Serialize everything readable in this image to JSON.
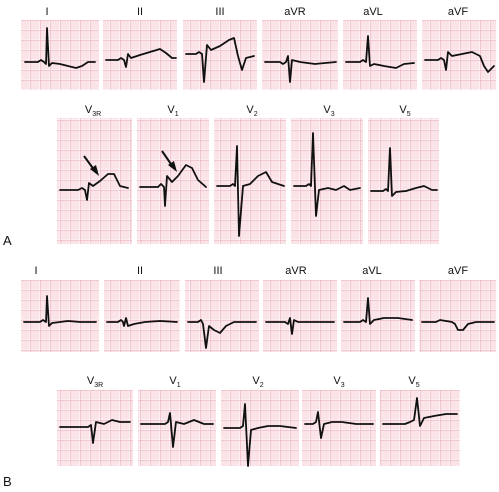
{
  "panels": [
    {
      "letter": "A",
      "rows": [
        {
          "leads": [
            {
              "name": "I",
              "sub": ""
            },
            {
              "name": "II",
              "sub": ""
            },
            {
              "name": "III",
              "sub": ""
            },
            {
              "name": "aVR",
              "sub": ""
            },
            {
              "name": "aVL",
              "sub": ""
            },
            {
              "name": "aVF",
              "sub": ""
            }
          ]
        },
        {
          "leads": [
            {
              "name": "V",
              "sub": "3R"
            },
            {
              "name": "V",
              "sub": "1"
            },
            {
              "name": "V",
              "sub": "2"
            },
            {
              "name": "V",
              "sub": "3"
            },
            {
              "name": "V",
              "sub": "5"
            }
          ]
        }
      ]
    },
    {
      "letter": "B",
      "rows": [
        {
          "leads": [
            {
              "name": "I",
              "sub": ""
            },
            {
              "name": "II",
              "sub": ""
            },
            {
              "name": "III",
              "sub": ""
            },
            {
              "name": "aVR",
              "sub": ""
            },
            {
              "name": "aVL",
              "sub": ""
            },
            {
              "name": "aVF",
              "sub": ""
            }
          ]
        },
        {
          "leads": [
            {
              "name": "V",
              "sub": "3R"
            },
            {
              "name": "V",
              "sub": "1"
            },
            {
              "name": "V",
              "sub": "2"
            },
            {
              "name": "V",
              "sub": "3"
            },
            {
              "name": "V",
              "sub": "5"
            }
          ]
        }
      ]
    }
  ],
  "colors": {
    "grid_minor": "#f4c6cf",
    "grid_major": "#e48a9b",
    "trace": "#111111"
  }
}
